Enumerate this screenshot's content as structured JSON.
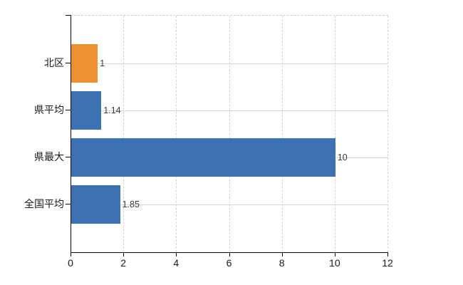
{
  "chart_data": {
    "type": "bar",
    "orientation": "horizontal",
    "title": "",
    "xlabel": "",
    "ylabel": "",
    "categories": [
      "北区",
      "県平均",
      "県最大",
      "全国平均"
    ],
    "values": [
      1,
      1.14,
      10,
      1.85
    ],
    "value_labels": [
      "1",
      "1.14",
      "10",
      "1.85"
    ],
    "bar_colors": [
      "#ee9031",
      "#3d72b2",
      "#3d72b2",
      "#3d72b2"
    ],
    "xlim": [
      0,
      12
    ],
    "xticks": [
      0,
      2,
      4,
      6,
      8,
      10,
      12
    ],
    "grid": "on",
    "legend": "none"
  },
  "colors": {
    "highlight_bar": "#ee9031",
    "default_bar": "#3d72b2",
    "gridline": "#d5d5d5",
    "top_border": "#cfcfcf",
    "axis": "#000000",
    "background": "#ffffff",
    "value_label_text": "#3a3a3a",
    "tick_label_text": "#1a1a1a"
  }
}
